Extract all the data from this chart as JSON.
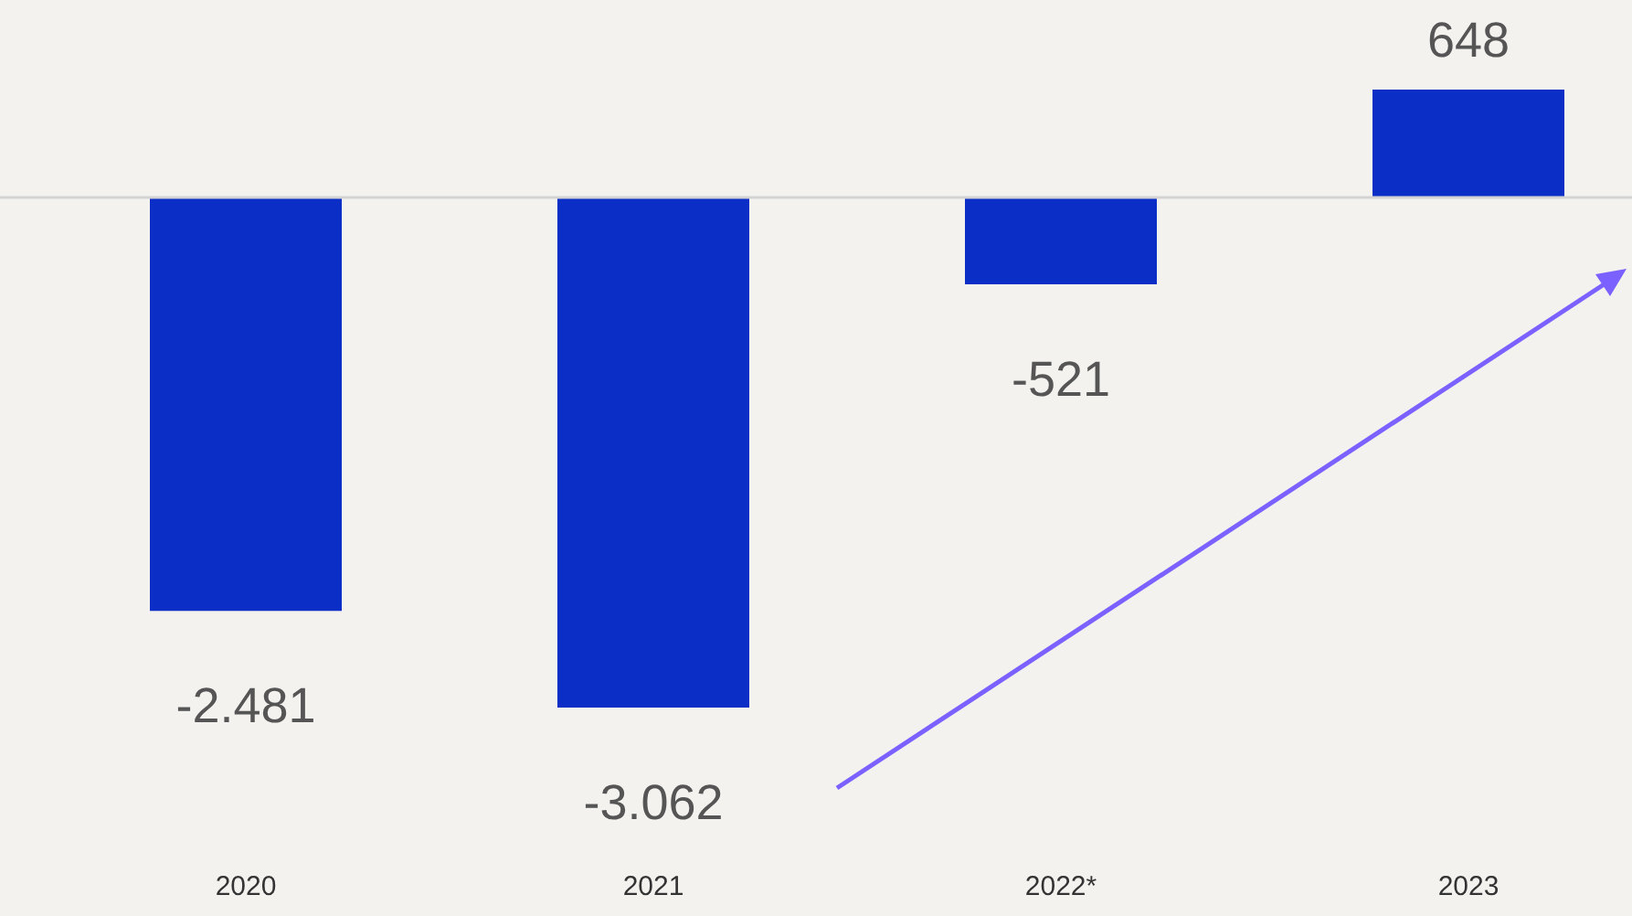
{
  "chart_data": {
    "type": "bar",
    "categories": [
      "2020",
      "2021",
      "2022*",
      "2023"
    ],
    "values": [
      -2481,
      -3062,
      -521,
      648
    ],
    "value_labels": [
      "-2.481",
      "-3.062",
      "-521",
      "648"
    ],
    "color": "#0b2fc6",
    "ref_lines": [
      {
        "axis": "y",
        "value": 0,
        "color": "#d3d3d3"
      }
    ]
  }
}
